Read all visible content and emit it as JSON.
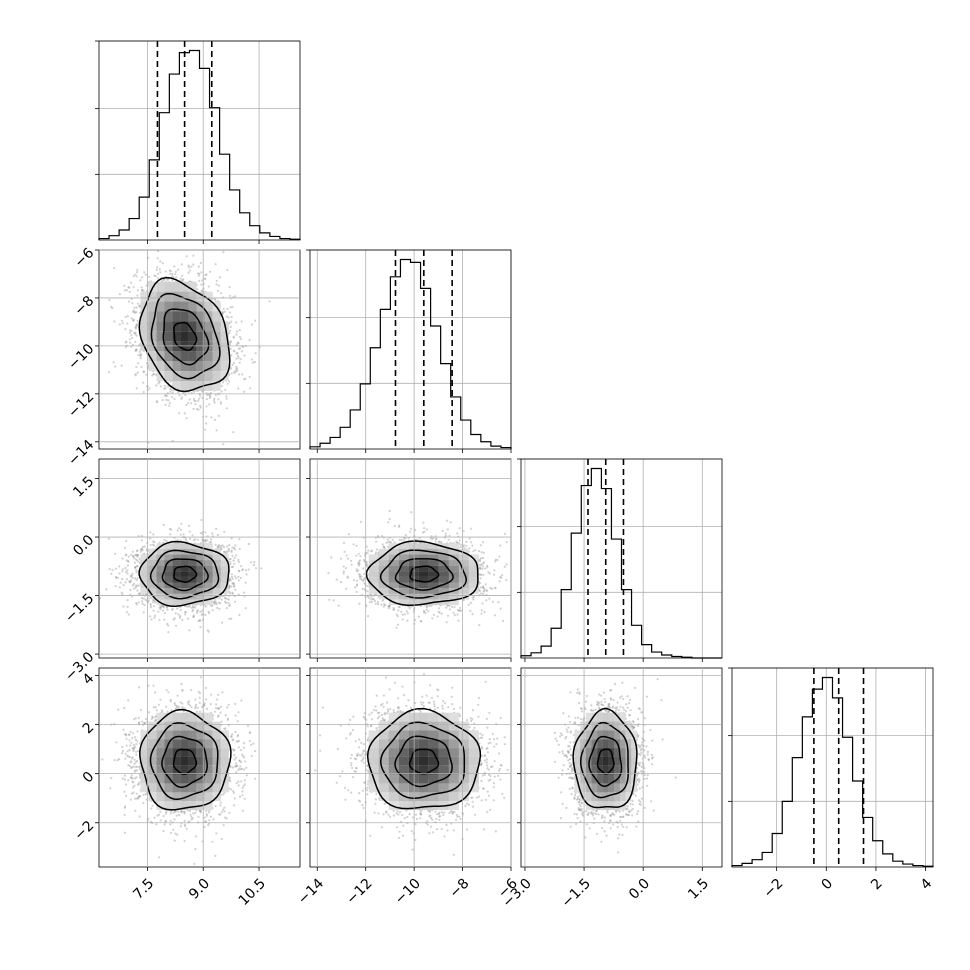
{
  "chart_data": {
    "type": "corner",
    "parameters": [
      {
        "range": [
          6.2,
          11.6
        ],
        "ticks": [
          7.5,
          9.0,
          10.5
        ],
        "tick_labels": [
          "7.5",
          "9.0",
          "10.5"
        ],
        "mean": 8.5,
        "sd": 0.6,
        "quantiles": [
          7.77,
          8.5,
          9.23
        ],
        "hist": [
          2,
          6,
          14,
          30,
          60,
          112,
          178,
          232,
          262,
          265,
          240,
          185,
          120,
          70,
          38,
          20,
          10,
          5,
          2,
          1
        ]
      },
      {
        "range": [
          -14.3,
          -6.0
        ],
        "ticks": [
          -14,
          -12,
          -10,
          -8,
          -6
        ],
        "tick_labels": [
          "−14",
          "−12",
          "−10",
          "−8",
          "−6"
        ],
        "mean": -9.6,
        "sd": 1.15,
        "quantiles": [
          -10.77,
          -9.6,
          -8.43
        ],
        "hist": [
          3,
          8,
          16,
          30,
          54,
          90,
          140,
          193,
          238,
          262,
          258,
          222,
          170,
          118,
          72,
          40,
          20,
          10,
          4,
          2
        ]
      },
      {
        "range": [
          -3.1,
          2.0
        ],
        "ticks": [
          -3.0,
          -1.5,
          0.0,
          1.5
        ],
        "tick_labels": [
          "−3.0",
          "−1.5",
          "0.0",
          "1.5"
        ],
        "mean": -0.95,
        "sd": 0.4,
        "quantiles": [
          -1.4,
          -0.95,
          -0.5
        ],
        "hist": [
          3,
          7,
          16,
          40,
          92,
          168,
          232,
          255,
          228,
          160,
          92,
          44,
          18,
          8,
          4,
          2,
          1,
          0,
          0,
          0
        ]
      },
      {
        "range": [
          -3.8,
          4.3
        ],
        "ticks": [
          -2,
          0,
          2,
          4
        ],
        "tick_labels": [
          "−2",
          "0",
          "2",
          "4"
        ],
        "mean": 0.5,
        "sd": 1.0,
        "quantiles": [
          -0.5,
          0.5,
          1.5
        ],
        "hist": [
          2,
          5,
          10,
          20,
          46,
          90,
          150,
          206,
          244,
          260,
          232,
          178,
          118,
          68,
          36,
          18,
          8,
          4,
          2,
          1
        ]
      }
    ],
    "scatter": {
      "samples": 3000,
      "correlations": {
        "1-0": -0.25,
        "2-0": 0.0,
        "2-1": 0.0,
        "3-0": 0.0,
        "3-1": 0.0,
        "3-2": 0.0
      },
      "contour_levels": [
        0.5,
        1.0,
        1.5,
        2.0
      ]
    },
    "grid": true,
    "title": "",
    "xlabel": "",
    "ylabel": ""
  }
}
